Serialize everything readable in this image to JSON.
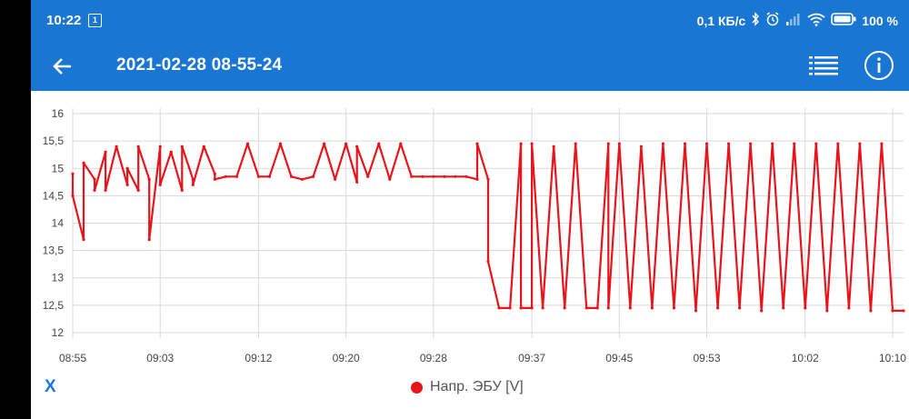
{
  "status_bar": {
    "time": "10:22",
    "sim_label": "1",
    "speed": "0,1 КБ/с",
    "battery": "100 %"
  },
  "app_bar": {
    "title": "2021-02-28 08-55-24"
  },
  "x_button": {
    "label": "X"
  },
  "legend": {
    "label": "Напр. ЭБУ [V]"
  },
  "colors": {
    "bar": "#1976D2",
    "series": "#e8141b",
    "grid": "#d9d9d9"
  },
  "icons": [
    "back-arrow-icon",
    "list-icon",
    "info-icon",
    "bluetooth-icon",
    "alarm-icon",
    "signal-icon",
    "wifi-icon",
    "battery-icon"
  ],
  "chart_data": {
    "type": "line",
    "title": "",
    "xlabel": "",
    "ylabel": "",
    "grid": true,
    "legend_position": "bottom",
    "ylim": [
      11.9,
      16.1
    ],
    "xlim": [
      "08:55",
      "10:11"
    ],
    "y_ticks": [
      "16",
      "15,5",
      "15",
      "14,5",
      "14",
      "13,5",
      "13",
      "12,5",
      "12"
    ],
    "y_tick_values": [
      16,
      15.5,
      15,
      14.5,
      14,
      13.5,
      13,
      12.5,
      12
    ],
    "x_ticks": [
      "08:55",
      "09:03",
      "09:12",
      "09:20",
      "09:28",
      "09:37",
      "09:45",
      "09:53",
      "10:02",
      "10:10"
    ],
    "x_tick_values": [
      "08:55",
      "09:03",
      "09:12",
      "09:20",
      "09:28",
      "09:37",
      "09:45",
      "09:53",
      "10:02",
      "10:10"
    ],
    "series": [
      {
        "name": "Напр. ЭБУ [V]",
        "x": [
          "08:55",
          "08:55",
          "08:56",
          "08:56",
          "08:57",
          "08:57",
          "08:58",
          "08:58",
          "08:59",
          "09:00",
          "09:00",
          "09:01",
          "09:01",
          "09:02",
          "09:02",
          "09:03",
          "09:03",
          "09:04",
          "09:05",
          "09:05",
          "09:06",
          "09:06",
          "09:07",
          "09:08",
          "09:08",
          "09:09",
          "09:10",
          "09:11",
          "09:12",
          "09:13",
          "09:14",
          "09:15",
          "09:16",
          "09:17",
          "09:18",
          "09:19",
          "09:20",
          "09:21",
          "09:21",
          "09:22",
          "09:23",
          "09:24",
          "09:25",
          "09:26",
          "09:27",
          "09:28",
          "09:29",
          "09:30",
          "09:31",
          "09:32",
          "09:32",
          "09:33",
          "09:33",
          "09:34",
          "09:35",
          "09:36",
          "09:36",
          "09:37",
          "09:37",
          "09:38",
          "09:39",
          "09:40",
          "09:41",
          "09:42",
          "09:43",
          "09:44",
          "09:44",
          "09:45",
          "09:46",
          "09:47",
          "09:48",
          "09:49",
          "09:50",
          "09:51",
          "09:52",
          "09:53",
          "09:54",
          "09:55",
          "09:56",
          "09:57",
          "09:58",
          "09:59",
          "10:00",
          "10:01",
          "10:02",
          "10:03",
          "10:04",
          "10:05",
          "10:06",
          "10:07",
          "10:08",
          "10:09",
          "10:10",
          "10:11"
        ],
        "y": [
          14.9,
          14.5,
          13.7,
          15.1,
          14.8,
          14.6,
          15.3,
          14.6,
          15.4,
          14.7,
          15.0,
          14.6,
          15.4,
          14.8,
          13.7,
          15.4,
          14.7,
          15.3,
          14.6,
          15.4,
          14.8,
          14.7,
          15.4,
          14.9,
          14.8,
          14.85,
          14.85,
          15.45,
          14.85,
          14.85,
          15.45,
          14.85,
          14.8,
          14.85,
          15.45,
          14.8,
          15.45,
          14.75,
          15.4,
          14.85,
          15.45,
          14.8,
          15.45,
          14.85,
          14.85,
          14.85,
          14.85,
          14.85,
          14.85,
          14.8,
          15.45,
          14.8,
          13.3,
          12.45,
          12.45,
          15.45,
          12.45,
          12.45,
          15.45,
          12.45,
          15.4,
          12.45,
          15.45,
          12.45,
          12.45,
          15.45,
          12.45,
          15.45,
          12.45,
          15.4,
          12.45,
          15.45,
          12.45,
          15.45,
          12.4,
          15.45,
          12.45,
          15.45,
          12.45,
          15.45,
          12.4,
          15.45,
          12.45,
          15.45,
          12.45,
          15.45,
          12.4,
          15.45,
          12.45,
          15.45,
          12.4,
          15.45,
          12.4,
          12.4
        ]
      }
    ]
  }
}
